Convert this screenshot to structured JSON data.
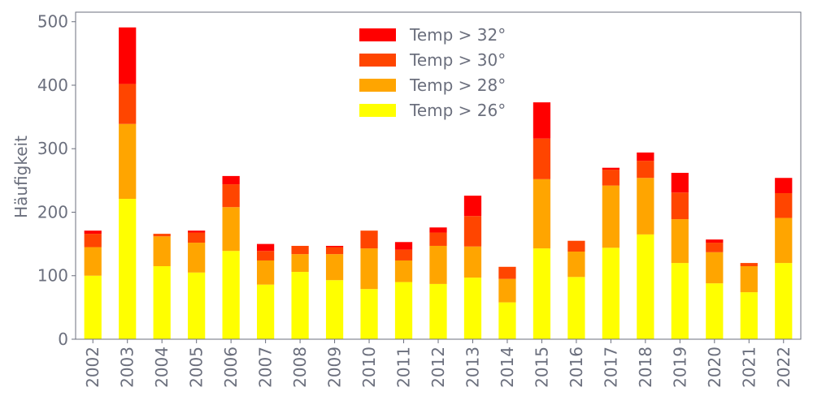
{
  "chart_data": {
    "type": "bar",
    "stacked": true,
    "title": "",
    "xlabel": "",
    "ylabel": "Häufigkeit",
    "ylim": [
      0,
      515
    ],
    "yticks": [
      0,
      100,
      200,
      300,
      400,
      500
    ],
    "grid": false,
    "legend_placement": "top-center",
    "categories": [
      "2002",
      "2003",
      "2004",
      "2005",
      "2006",
      "2007",
      "2008",
      "2009",
      "2010",
      "2011",
      "2012",
      "2013",
      "2014",
      "2015",
      "2016",
      "2017",
      "2018",
      "2019",
      "2020",
      "2021",
      "2022"
    ],
    "series": [
      {
        "name": "Temp > 26°",
        "color": "#ffff00",
        "values": [
          100,
          221,
          115,
          105,
          139,
          86,
          106,
          93,
          79,
          90,
          87,
          97,
          58,
          143,
          98,
          144,
          165,
          120,
          88,
          74,
          120
        ]
      },
      {
        "name": "Temp > 28°",
        "color": "#ffa500",
        "values": [
          45,
          118,
          47,
          47,
          69,
          38,
          28,
          41,
          64,
          34,
          60,
          49,
          37,
          109,
          40,
          98,
          89,
          69,
          49,
          41,
          71
        ]
      },
      {
        "name": "Temp > 30°",
        "color": "#ff4500",
        "values": [
          21,
          63,
          4,
          16,
          36,
          15,
          13,
          11,
          28,
          17,
          21,
          48,
          19,
          64,
          17,
          25,
          27,
          42,
          15,
          5,
          39
        ]
      },
      {
        "name": "Temp > 32°",
        "color": "#ff0000",
        "values": [
          5,
          89,
          0,
          3,
          13,
          11,
          0,
          2,
          0,
          12,
          8,
          32,
          0,
          57,
          0,
          3,
          13,
          31,
          5,
          0,
          24
        ]
      }
    ]
  }
}
